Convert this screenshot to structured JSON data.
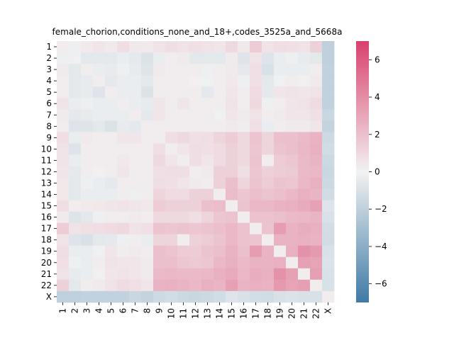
{
  "chart_data": {
    "type": "heatmap",
    "title": "female_chorion,conditions_none_and_18+,codes_3525a_and_5668a",
    "xlabel": "",
    "ylabel": "",
    "labels": [
      "1",
      "2",
      "3",
      "4",
      "5",
      "6",
      "7",
      "8",
      "9",
      "10",
      "11",
      "12",
      "13",
      "14",
      "15",
      "16",
      "17",
      "18",
      "19",
      "20",
      "21",
      "22",
      "X"
    ],
    "colorbar": {
      "vmin": -7,
      "vmax": 7,
      "ticks": [
        -6,
        -4,
        -2,
        0,
        2,
        4,
        6
      ],
      "tick_labels": [
        "−6",
        "−4",
        "−2",
        "0",
        "2",
        "4",
        "6"
      ],
      "colors": {
        "low": "#3f7aa6",
        "mid": "#f2f2f2",
        "high": "#d9416d"
      }
    },
    "matrix": [
      [
        0.2,
        -0.2,
        0.3,
        0.5,
        0.3,
        0.8,
        0.4,
        0.3,
        0.6,
        0.8,
        0.6,
        0.7,
        0.6,
        0.5,
        1.0,
        0.4,
        1.5,
        0.6,
        0.8,
        0.7,
        0.6,
        1.3,
        -2.0
      ],
      [
        -0.2,
        -0.1,
        -0.6,
        -0.6,
        -0.6,
        -0.3,
        -0.5,
        -0.9,
        -0.3,
        0.2,
        0.3,
        -0.6,
        -0.6,
        -0.6,
        0.3,
        -0.8,
        0.6,
        -0.8,
        -0.3,
        -0.2,
        -0.4,
        -0.6,
        -2.0
      ],
      [
        0.3,
        -0.6,
        0.2,
        -0.3,
        -0.4,
        -0.2,
        -0.4,
        -0.8,
        0.3,
        0.2,
        0.2,
        0.2,
        -0.2,
        0.2,
        0.3,
        -0.5,
        0.7,
        -1.0,
        -0.3,
        -0.3,
        -0.3,
        0.2,
        -1.9
      ],
      [
        0.2,
        -0.6,
        -0.4,
        0.2,
        -0.5,
        -0.3,
        -0.3,
        -0.6,
        0.2,
        0.2,
        0.2,
        0.1,
        -0.1,
        0.2,
        0.4,
        -0.2,
        0.7,
        -0.6,
        -0.1,
        0.2,
        0.1,
        0.3,
        -1.9
      ],
      [
        0.2,
        -0.6,
        -0.4,
        -0.8,
        0.2,
        -0.3,
        -0.3,
        -0.9,
        0.2,
        0.2,
        0.2,
        0.2,
        -0.5,
        0.2,
        0.5,
        0.2,
        0.9,
        -0.5,
        0.5,
        0.6,
        0.5,
        0.6,
        -1.9
      ],
      [
        0.6,
        -0.3,
        -0.2,
        -0.3,
        -0.3,
        0.2,
        -0.3,
        -0.4,
        0.5,
        0.2,
        0.5,
        0.2,
        0.2,
        0.2,
        0.6,
        0.2,
        1.0,
        -0.2,
        0.2,
        0.5,
        0.6,
        0.9,
        -1.9
      ],
      [
        0.3,
        -0.5,
        -0.4,
        -0.3,
        -0.3,
        -0.3,
        0.2,
        -0.5,
        0.5,
        0.2,
        0.2,
        0.2,
        0.2,
        -0.1,
        0.5,
        0.3,
        0.6,
        0.2,
        0.3,
        0.5,
        0.5,
        0.7,
        -1.6
      ],
      [
        0.2,
        -0.8,
        -0.8,
        -0.6,
        -0.9,
        -0.4,
        -0.5,
        0.2,
        0.2,
        0.2,
        0.2,
        0.2,
        0.2,
        0.2,
        0.3,
        0.2,
        0.7,
        -0.3,
        0.2,
        0.3,
        0.3,
        0.5,
        -1.8
      ],
      [
        0.8,
        -0.3,
        0.3,
        0.2,
        0.2,
        0.5,
        0.5,
        0.2,
        0.2,
        0.8,
        1.0,
        0.7,
        0.8,
        1.2,
        1.5,
        1.0,
        1.8,
        1.2,
        2.0,
        2.0,
        2.2,
        2.5,
        -1.4
      ],
      [
        0.6,
        -0.8,
        0.2,
        0.2,
        0.2,
        0.2,
        0.2,
        0.2,
        0.8,
        0.2,
        0.5,
        0.8,
        0.7,
        0.9,
        1.3,
        1.0,
        1.7,
        1.2,
        1.8,
        2.0,
        2.3,
        2.6,
        -1.3
      ],
      [
        0.6,
        -0.3,
        0.2,
        0.2,
        0.2,
        0.4,
        0.2,
        0.2,
        1.0,
        0.5,
        0.2,
        0.8,
        0.5,
        0.9,
        1.3,
        1.0,
        1.8,
        0.2,
        1.5,
        1.7,
        2.2,
        2.4,
        -1.5
      ],
      [
        0.5,
        -0.5,
        0.2,
        0.1,
        0.2,
        0.5,
        0.2,
        0.2,
        0.7,
        0.8,
        0.8,
        0.2,
        0.3,
        1.3,
        1.3,
        0.8,
        1.7,
        1.3,
        1.5,
        1.6,
        2.2,
        2.3,
        -1.6
      ],
      [
        0.4,
        -0.6,
        -0.2,
        -0.3,
        -0.5,
        0.2,
        0.2,
        0.2,
        0.8,
        0.7,
        0.5,
        0.3,
        0.2,
        1.3,
        2.0,
        1.2,
        1.8,
        1.5,
        1.8,
        1.7,
        2.3,
        2.6,
        -1.5
      ],
      [
        0.4,
        -0.6,
        -0.3,
        -0.3,
        -0.3,
        0.2,
        -0.2,
        0.2,
        1.2,
        0.9,
        0.9,
        1.3,
        1.3,
        0.2,
        2.1,
        1.7,
        2.0,
        1.8,
        2.0,
        2.3,
        2.6,
        2.4,
        -1.3
      ],
      [
        0.8,
        0.2,
        0.3,
        0.4,
        0.5,
        0.6,
        0.5,
        0.4,
        1.5,
        1.3,
        1.3,
        1.3,
        2.0,
        2.1,
        0.2,
        1.8,
        2.3,
        2.3,
        2.5,
        2.6,
        2.8,
        3.2,
        -0.8
      ],
      [
        0.3,
        -0.8,
        -0.6,
        -0.2,
        0.2,
        0.2,
        0.3,
        0.2,
        1.0,
        1.0,
        1.0,
        0.8,
        1.2,
        1.7,
        1.8,
        0.2,
        1.9,
        1.9,
        2.0,
        2.2,
        2.3,
        2.4,
        -1.0
      ],
      [
        1.5,
        0.6,
        0.7,
        0.8,
        0.9,
        1.0,
        0.6,
        0.7,
        1.8,
        1.7,
        1.8,
        1.7,
        1.8,
        2.0,
        2.3,
        1.9,
        0.2,
        1.8,
        3.4,
        2.5,
        2.7,
        2.6,
        -1.2
      ],
      [
        0.6,
        -0.8,
        -1.0,
        -0.6,
        -0.5,
        -0.2,
        0.2,
        -0.3,
        1.2,
        1.2,
        0.2,
        1.3,
        1.5,
        1.8,
        2.3,
        1.9,
        1.8,
        0.2,
        2.5,
        2.5,
        2.6,
        2.5,
        -1.3
      ],
      [
        0.8,
        -0.3,
        -0.3,
        -0.1,
        0.5,
        0.2,
        0.3,
        0.2,
        2.0,
        1.8,
        1.5,
        1.5,
        1.8,
        2.0,
        2.5,
        2.0,
        3.4,
        2.5,
        0.2,
        2.6,
        3.8,
        3.5,
        -1.0
      ],
      [
        0.7,
        -0.2,
        -0.3,
        0.2,
        0.6,
        0.5,
        0.5,
        0.3,
        2.0,
        2.0,
        1.7,
        1.6,
        1.7,
        2.3,
        2.6,
        2.2,
        2.5,
        2.5,
        2.6,
        0.2,
        3.2,
        3.1,
        -0.9
      ],
      [
        0.6,
        -0.4,
        -0.3,
        0.1,
        0.5,
        0.6,
        0.5,
        0.3,
        2.2,
        2.3,
        2.2,
        2.2,
        2.3,
        2.6,
        2.8,
        2.3,
        2.7,
        2.6,
        3.8,
        3.2,
        0.2,
        3.3,
        -1.0
      ],
      [
        1.3,
        -0.6,
        0.2,
        0.3,
        0.6,
        0.9,
        0.7,
        0.5,
        2.5,
        2.6,
        2.4,
        2.3,
        2.6,
        2.4,
        3.2,
        2.4,
        2.6,
        2.5,
        3.5,
        3.1,
        3.3,
        0.2,
        -1.0
      ],
      [
        -2.0,
        -2.0,
        -1.9,
        -1.9,
        -1.9,
        -1.9,
        -1.6,
        -1.8,
        -1.4,
        -1.3,
        -1.5,
        -1.6,
        -1.5,
        -1.3,
        -0.8,
        -1.0,
        -1.2,
        -1.3,
        -1.0,
        -0.9,
        -1.0,
        -1.0,
        0.2
      ]
    ]
  }
}
